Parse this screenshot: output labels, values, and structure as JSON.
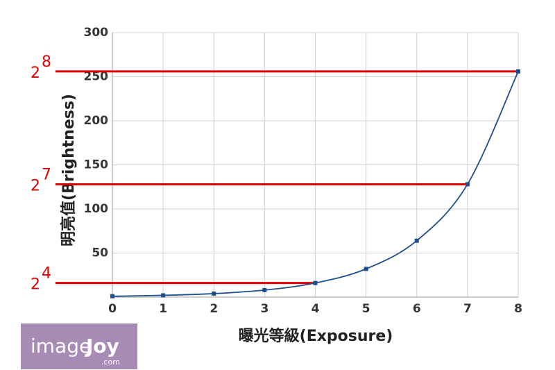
{
  "chart_data": {
    "type": "line",
    "x_label": "曝光等級(Exposure)",
    "y_label": "明亮值(Brightness)",
    "x": [
      0,
      1,
      2,
      3,
      4,
      5,
      6,
      7,
      8
    ],
    "series": [
      {
        "color": "#1f4e8c",
        "values": [
          1,
          2,
          4,
          8,
          16,
          32,
          64,
          128,
          256
        ]
      }
    ],
    "xlim": [
      0,
      8
    ],
    "xticks": [
      0,
      1,
      2,
      3,
      4,
      5,
      6,
      7,
      8
    ],
    "ylim": [
      0,
      300
    ],
    "yticks": [
      50,
      100,
      150,
      200,
      250,
      300
    ],
    "grid": true,
    "reference_lines": [
      {
        "base": "2",
        "exponent": "8",
        "value": 256,
        "x": 8
      },
      {
        "base": "2",
        "exponent": "7",
        "value": 128,
        "x": 7
      },
      {
        "base": "2",
        "exponent": "4",
        "value": 16,
        "x": 4
      }
    ],
    "reference_color": "#e00000",
    "logo": {
      "main": "image",
      "accent": "Joy",
      "sub": ".com"
    }
  }
}
